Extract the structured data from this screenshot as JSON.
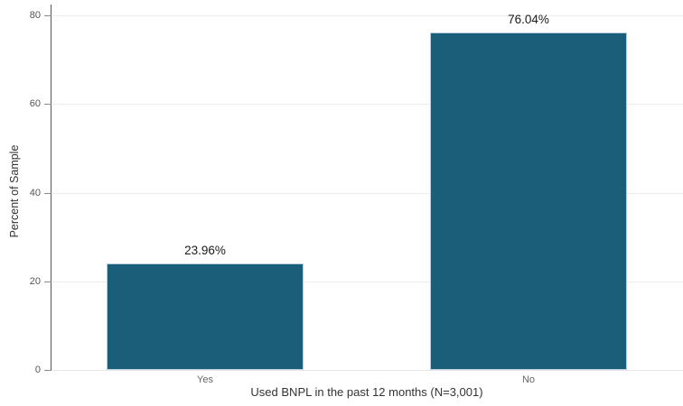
{
  "chart_data": {
    "type": "bar",
    "categories": [
      "Yes",
      "No"
    ],
    "values": [
      23.96,
      76.04
    ],
    "value_labels": [
      "23.96%",
      "76.04%"
    ],
    "title": "",
    "xlabel": "Used BNPL in the past 12 months (N=3,001)",
    "ylabel": "Percent of Sample",
    "ylim": [
      0,
      80
    ],
    "yticks": [
      0,
      20,
      40,
      60,
      80
    ],
    "grid": "horizontal",
    "legend": "none",
    "bar_color": "#1a5e7a",
    "bar_border_color": "#b7d0dc"
  },
  "colors": {
    "background": "#ffffff",
    "y_axis_line": "#565656",
    "x_axis_line": "#e6e6e6",
    "grid_line": "#ececec",
    "tick_mark": "#8a8a8a",
    "tick_label": "#555555",
    "category_label": "#666666",
    "value_label": "#1a1a1a",
    "axis_title": "#333333"
  }
}
